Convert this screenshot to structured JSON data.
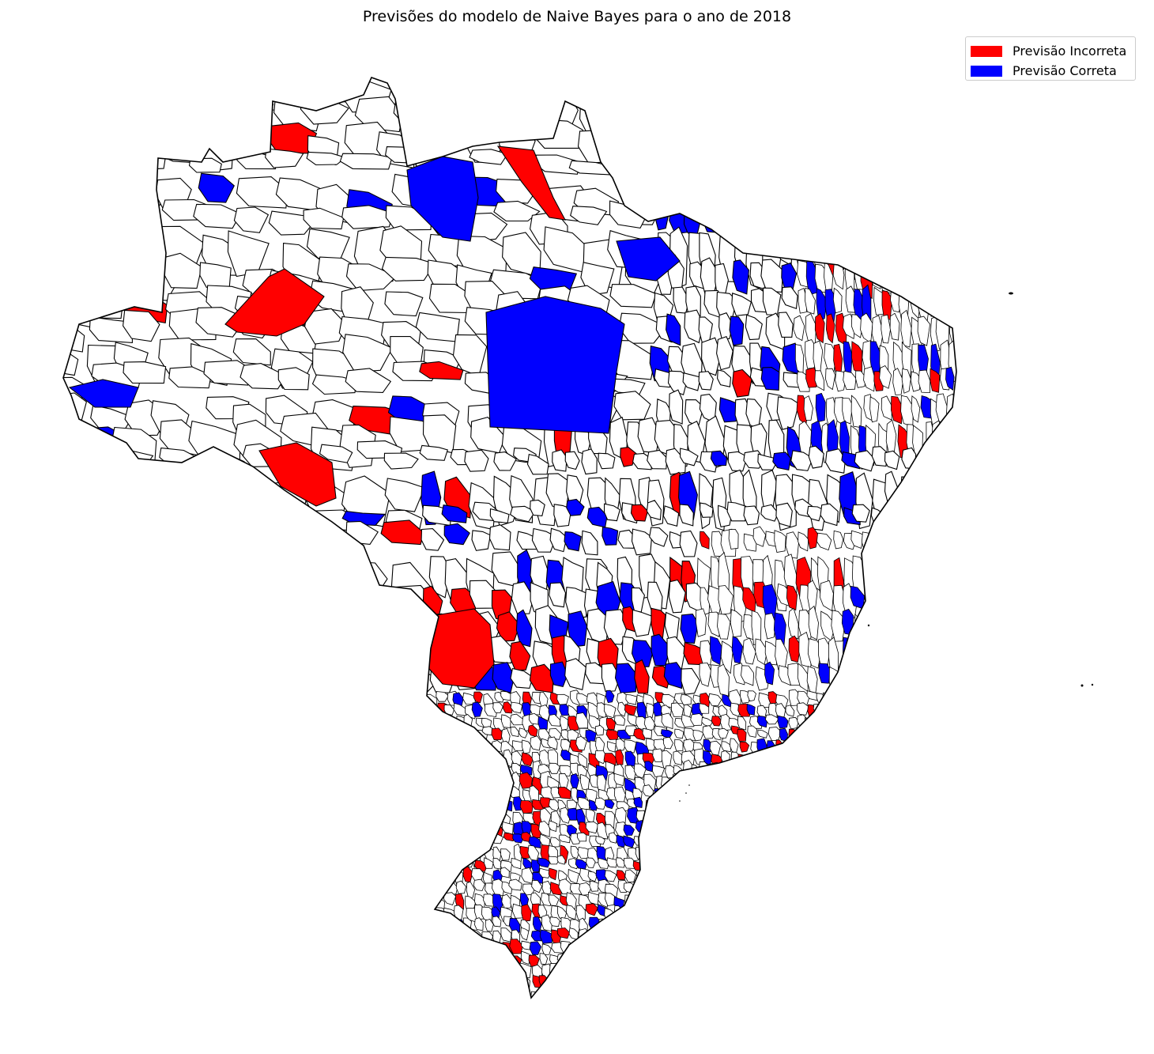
{
  "title": "Previsões do modelo de Naive Bayes para o ano de 2018",
  "legend": {
    "items": [
      {
        "label": "Previsão Incorreta",
        "color": "#ff0000"
      },
      {
        "label": "Previsão Correta",
        "color": "#0000ff"
      }
    ]
  },
  "colors": {
    "incorrect": "#ff0000",
    "correct": "#0000ff",
    "outline": "#000000",
    "background": "#ffffff"
  }
}
